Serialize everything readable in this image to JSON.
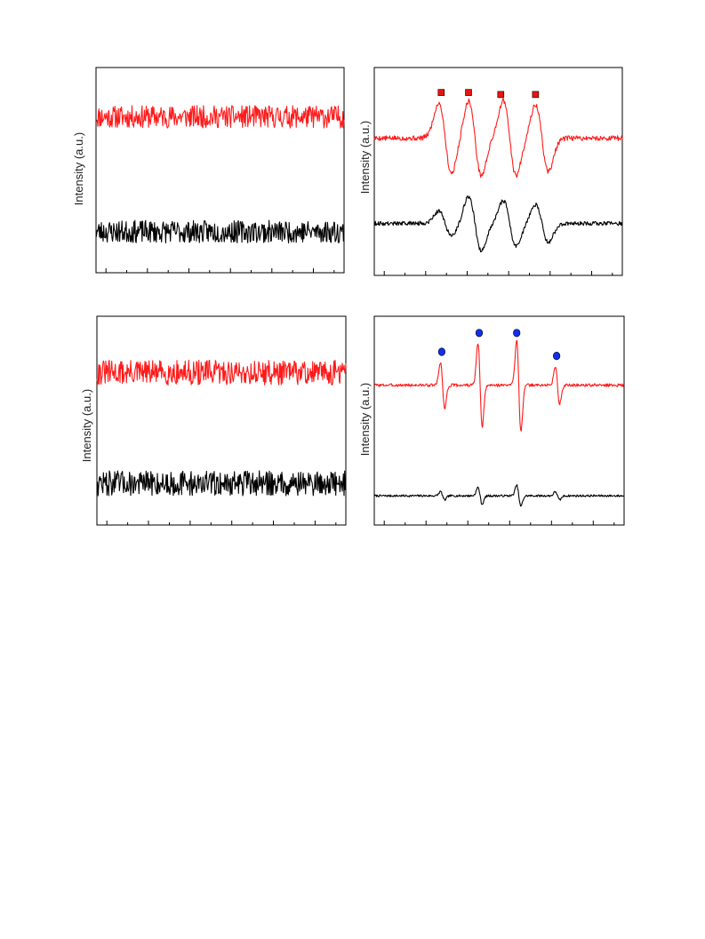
{
  "page": {
    "background": "#ffffff"
  },
  "colors": {
    "red": "#ff1a1a",
    "black": "#000000",
    "square_marker": "#e8150f",
    "circle_marker": "#1030ee"
  },
  "chart_data": [
    {
      "id": "top-left",
      "type": "line",
      "ylabel": "Intensity (a.u.)",
      "xlim": [
        0,
        1
      ],
      "ylim": [
        0,
        1
      ],
      "grid": false,
      "legend": "none",
      "x_ticks": 12,
      "x_tick_labels": [],
      "y_tick_labels": [],
      "series": [
        {
          "color": "#ff1a1a",
          "shape": "noise",
          "baseline": 0.76,
          "amplitude": 0.055,
          "seed": 11
        },
        {
          "color": "#000000",
          "shape": "noise",
          "baseline": 0.2,
          "amplitude": 0.055,
          "seed": 23
        }
      ]
    },
    {
      "id": "top-right",
      "type": "line",
      "ylabel": "Intensity (a.u.)",
      "xlim": [
        0,
        1
      ],
      "ylim": [
        0,
        1
      ],
      "grid": false,
      "legend": "none",
      "x_ticks": 12,
      "x_tick_labels": [],
      "y_tick_labels": [],
      "series": [
        {
          "color": "#ff1a1a",
          "shape": "broad-quartet",
          "baseline": 0.66,
          "noise": 0.012,
          "seed": 5,
          "peaks": [
            {
              "x": 0.26,
              "amp": 0.17
            },
            {
              "x": 0.38,
              "amp": 0.18
            },
            {
              "x": 0.52,
              "amp": 0.18
            },
            {
              "x": 0.65,
              "amp": 0.16
            }
          ]
        },
        {
          "color": "#000000",
          "shape": "broad-quartet",
          "baseline": 0.25,
          "noise": 0.01,
          "seed": 9,
          "peaks": [
            {
              "x": 0.26,
              "amp": 0.06
            },
            {
              "x": 0.38,
              "amp": 0.13
            },
            {
              "x": 0.52,
              "amp": 0.11
            },
            {
              "x": 0.65,
              "amp": 0.09
            }
          ]
        }
      ],
      "markers": {
        "shape": "square",
        "color": "#e8150f",
        "x": [
          0.27,
          0.38,
          0.51,
          0.65
        ],
        "y": [
          0.88,
          0.88,
          0.87,
          0.87
        ]
      }
    },
    {
      "id": "bottom-left",
      "type": "line",
      "ylabel": "Intensity (a.u.)",
      "xlim": [
        0,
        1
      ],
      "ylim": [
        0,
        1
      ],
      "grid": false,
      "legend": "none",
      "x_ticks": 12,
      "x_tick_labels": [],
      "y_tick_labels": [],
      "series": [
        {
          "color": "#ff1a1a",
          "shape": "noise",
          "baseline": 0.73,
          "amplitude": 0.06,
          "seed": 31
        },
        {
          "color": "#000000",
          "shape": "noise",
          "baseline": 0.2,
          "amplitude": 0.06,
          "seed": 47
        }
      ]
    },
    {
      "id": "bottom-right",
      "type": "line",
      "ylabel": "Intensity (a.u.)",
      "xlim": [
        0,
        1
      ],
      "ylim": [
        0,
        1
      ],
      "grid": false,
      "legend": "none",
      "x_ticks": 12,
      "x_tick_labels": [],
      "y_tick_labels": [],
      "series": [
        {
          "color": "#ff1a1a",
          "shape": "sharp-quartet",
          "baseline": 0.67,
          "noise": 0.007,
          "seed": 3,
          "peaks": [
            {
              "x": 0.265,
              "amp": 0.11
            },
            {
              "x": 0.415,
              "amp": 0.2
            },
            {
              "x": 0.57,
              "amp": 0.22
            },
            {
              "x": 0.725,
              "amp": 0.09
            }
          ]
        },
        {
          "color": "#000000",
          "shape": "sharp-quartet",
          "baseline": 0.14,
          "noise": 0.005,
          "seed": 7,
          "peaks": [
            {
              "x": 0.265,
              "amp": 0.02
            },
            {
              "x": 0.415,
              "amp": 0.04
            },
            {
              "x": 0.57,
              "amp": 0.05
            },
            {
              "x": 0.725,
              "amp": 0.02
            }
          ]
        }
      ],
      "markers": {
        "shape": "circle",
        "color": "#1030ee",
        "x": [
          0.27,
          0.42,
          0.57,
          0.73
        ],
        "y": [
          0.83,
          0.92,
          0.92,
          0.81
        ]
      }
    }
  ]
}
